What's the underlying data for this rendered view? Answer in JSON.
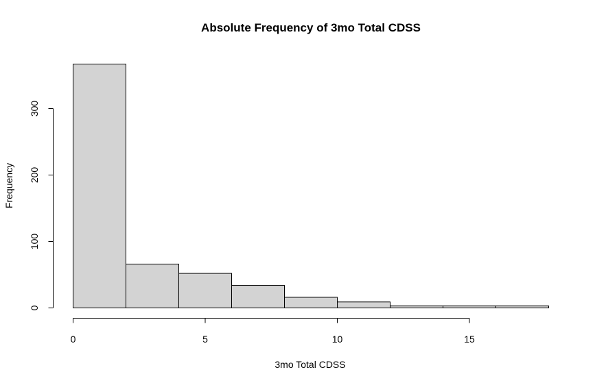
{
  "chart_data": {
    "type": "bar",
    "subtype": "histogram",
    "title": "Absolute Frequency of 3mo Total CDSS",
    "xlabel": "3mo Total CDSS",
    "ylabel": "Frequency",
    "bins": [
      {
        "x0": 0,
        "x1": 2,
        "count": 367
      },
      {
        "x0": 2,
        "x1": 4,
        "count": 66
      },
      {
        "x0": 4,
        "x1": 6,
        "count": 52
      },
      {
        "x0": 6,
        "x1": 8,
        "count": 34
      },
      {
        "x0": 8,
        "x1": 10,
        "count": 16
      },
      {
        "x0": 10,
        "x1": 12,
        "count": 9
      },
      {
        "x0": 12,
        "x1": 14,
        "count": 3
      },
      {
        "x0": 14,
        "x1": 16,
        "count": 3
      },
      {
        "x0": 16,
        "x1": 18,
        "count": 3
      }
    ],
    "xticks": [
      0,
      5,
      10,
      15
    ],
    "yticks": [
      0,
      100,
      200,
      300
    ],
    "xlim": [
      0,
      18
    ],
    "ylim": [
      0,
      367
    ],
    "bar_color": "#d3d3d3",
    "edge_color": "#000000",
    "grid": false,
    "legend": "none"
  }
}
